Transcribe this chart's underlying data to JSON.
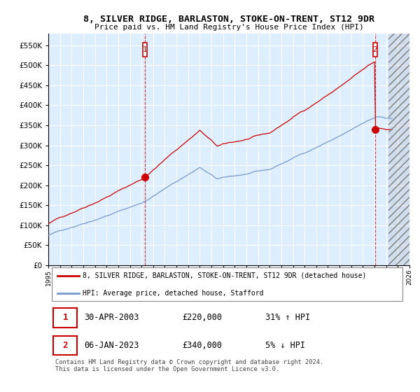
{
  "title": "8, SILVER RIDGE, BARLASTON, STOKE-ON-TRENT, ST12 9DR",
  "subtitle": "Price paid vs. HM Land Registry's House Price Index (HPI)",
  "legend_line1": "8, SILVER RIDGE, BARLASTON, STOKE-ON-TRENT, ST12 9DR (detached house)",
  "legend_line2": "HPI: Average price, detached house, Stafford",
  "transaction1_date": "30-APR-2003",
  "transaction1_price": "£220,000",
  "transaction1_hpi": "31% ↑ HPI",
  "transaction2_date": "06-JAN-2023",
  "transaction2_price": "£340,000",
  "transaction2_hpi": "5% ↓ HPI",
  "footer": "Contains HM Land Registry data © Crown copyright and database right 2024.\nThis data is licensed under the Open Government Licence v3.0.",
  "hpi_color": "#7799cc",
  "price_color": "#cc0000",
  "marker_color": "#cc0000",
  "chart_bg": "#ddeeff",
  "grid_color": "#ffffff",
  "ylim": [
    0,
    580000
  ],
  "yticks": [
    0,
    50000,
    100000,
    150000,
    200000,
    250000,
    300000,
    350000,
    400000,
    450000,
    500000,
    550000
  ],
  "xlim_start": 1995.0,
  "xlim_end": 2026.0,
  "sale1_year": 2003.29,
  "sale1_price": 220000,
  "sale2_year": 2023.04,
  "sale2_price": 340000
}
